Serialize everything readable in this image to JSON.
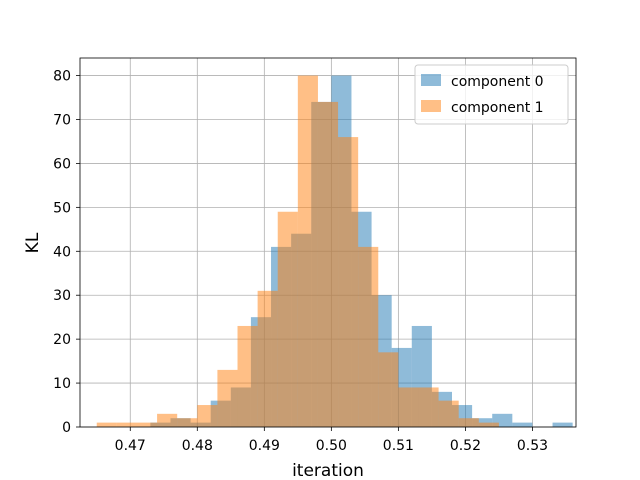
{
  "chart_data": {
    "type": "bar",
    "title": "",
    "xlabel": "iteration",
    "ylabel": "KL",
    "xlim": [
      0.4625,
      0.5365
    ],
    "ylim": [
      0,
      84
    ],
    "grid": true,
    "legend_position": "top-right",
    "x_ticks": [
      0.47,
      0.48,
      0.49,
      0.5,
      0.51,
      0.52,
      0.53
    ],
    "x_tick_labels": [
      "0.47",
      "0.48",
      "0.49",
      "0.50",
      "0.51",
      "0.52",
      "0.53"
    ],
    "y_ticks": [
      0,
      10,
      20,
      30,
      40,
      50,
      60,
      70,
      80
    ],
    "y_tick_labels": [
      "0",
      "10",
      "20",
      "30",
      "40",
      "50",
      "60",
      "70",
      "80"
    ],
    "series": [
      {
        "name": "component 0",
        "color": "#1f77b4",
        "alpha": 0.5,
        "bin_width": 0.003,
        "bins": [
          [
            0.4745,
            1
          ],
          [
            0.4775,
            2
          ],
          [
            0.4805,
            1
          ],
          [
            0.4835,
            6
          ],
          [
            0.4865,
            9
          ],
          [
            0.4895,
            25
          ],
          [
            0.4925,
            41
          ],
          [
            0.4955,
            44
          ],
          [
            0.4985,
            74
          ],
          [
            0.5015,
            80
          ],
          [
            0.5045,
            49
          ],
          [
            0.5075,
            30
          ],
          [
            0.5105,
            18
          ],
          [
            0.5135,
            23
          ],
          [
            0.5165,
            8
          ],
          [
            0.5195,
            5
          ],
          [
            0.5225,
            2
          ],
          [
            0.5255,
            3
          ],
          [
            0.5285,
            1
          ],
          [
            0.5345,
            1
          ]
        ]
      },
      {
        "name": "component 1",
        "color": "#ff7f0e",
        "alpha": 0.5,
        "bin_width": 0.003,
        "bins": [
          [
            0.4665,
            1
          ],
          [
            0.4695,
            1
          ],
          [
            0.4725,
            1
          ],
          [
            0.4755,
            3
          ],
          [
            0.4785,
            2
          ],
          [
            0.4815,
            5
          ],
          [
            0.4845,
            13
          ],
          [
            0.4875,
            23
          ],
          [
            0.4905,
            31
          ],
          [
            0.4935,
            49
          ],
          [
            0.4965,
            80
          ],
          [
            0.4995,
            74
          ],
          [
            0.5025,
            66
          ],
          [
            0.5055,
            41
          ],
          [
            0.5085,
            17
          ],
          [
            0.5115,
            9
          ],
          [
            0.5145,
            9
          ],
          [
            0.5175,
            6
          ],
          [
            0.5205,
            2
          ],
          [
            0.5235,
            1
          ]
        ]
      }
    ]
  }
}
